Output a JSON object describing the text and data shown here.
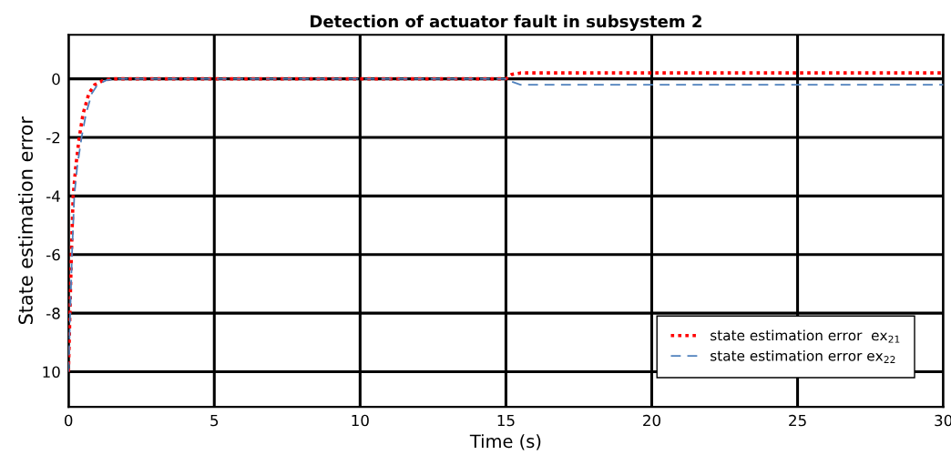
{
  "chart_data": {
    "type": "line",
    "title": "Detection of actuator fault in subsystem 2",
    "xlabel": "Time (s)",
    "ylabel": "State estimation error",
    "xlim": [
      0,
      30
    ],
    "xticks": [
      0,
      5,
      10,
      15,
      20,
      25,
      30
    ],
    "ylim": [
      -11.2,
      1.5
    ],
    "yticks": [
      0,
      -2,
      -4,
      -6,
      -8,
      {
        "value": -10,
        "label": "10"
      }
    ],
    "grid": true,
    "legend": "bottom right",
    "series": [
      {
        "name": "state estimation error  ex$_{21}$",
        "color": "#ff0000",
        "line_style": "dotted",
        "x": [
          0,
          0.05,
          0.1,
          0.16,
          0.25,
          0.37,
          0.5,
          0.7,
          0.9,
          1.2,
          1.5,
          15,
          15.2,
          15.5,
          30
        ],
        "values": [
          -10,
          -8,
          -6,
          -4,
          -3,
          -2,
          -1.2,
          -0.5,
          -0.2,
          -0.05,
          0,
          0,
          0.15,
          0.2,
          0.2
        ]
      },
      {
        "name": "state estimation error ex$_{22}$",
        "color": "#4f81bd",
        "line_style": "dashed",
        "x": [
          0,
          0.06,
          0.12,
          0.2,
          0.3,
          0.45,
          0.6,
          0.8,
          1.0,
          1.3,
          1.7,
          15,
          15.2,
          15.5,
          30
        ],
        "values": [
          -10,
          -8,
          -6,
          -4,
          -3,
          -2,
          -1.2,
          -0.5,
          -0.2,
          -0.05,
          0,
          0,
          -0.1,
          -0.2,
          -0.2
        ]
      }
    ]
  }
}
